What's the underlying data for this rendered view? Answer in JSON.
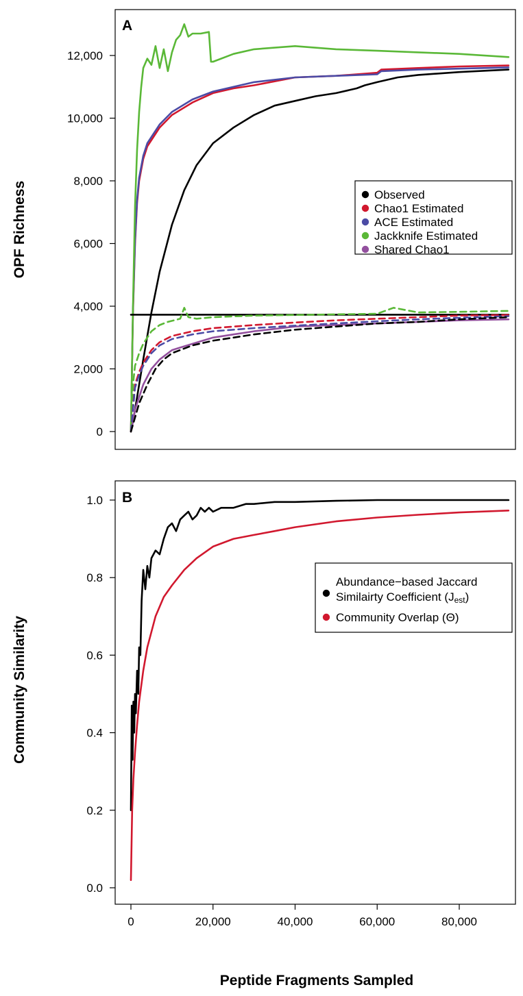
{
  "chart_data": [
    {
      "type": "line",
      "panel_label": "A",
      "ylabel": "OPF Richness",
      "xlabel": "",
      "xlim": [
        0,
        92000
      ],
      "ylim": [
        0,
        12000
      ],
      "yticks": [
        0,
        2000,
        4000,
        6000,
        8000,
        10000,
        12000
      ],
      "ytick_labels": [
        "0",
        "2,000",
        "4,000",
        "6,000",
        "8,000",
        "10,000",
        "12,000"
      ],
      "legend_position": "right",
      "series": [
        {
          "name": "Observed",
          "color": "#000000",
          "dashed": false,
          "x": [
            0,
            1000,
            2000,
            3000,
            5000,
            7000,
            10000,
            13000,
            16000,
            20000,
            25000,
            30000,
            35000,
            40000,
            45000,
            50000,
            55000,
            57000,
            60000,
            65000,
            70000,
            80000,
            92000
          ],
          "y": [
            0,
            700,
            1500,
            2300,
            3800,
            5100,
            6600,
            7700,
            8500,
            9200,
            9700,
            10100,
            10400,
            10550,
            10700,
            10800,
            10950,
            11050,
            11150,
            11300,
            11380,
            11470,
            11550
          ]
        },
        {
          "name": "Chao1 Estimated",
          "color": "#D1182E",
          "dashed": false,
          "x": [
            0,
            500,
            1000,
            1500,
            2000,
            3000,
            4000,
            5000,
            7000,
            10000,
            15000,
            20000,
            25000,
            30000,
            40000,
            50000,
            60000,
            61000,
            70000,
            80000,
            92000
          ],
          "y": [
            0,
            3800,
            6000,
            7300,
            8000,
            8700,
            9100,
            9300,
            9700,
            10100,
            10500,
            10800,
            10950,
            11050,
            11300,
            11350,
            11450,
            11550,
            11600,
            11650,
            11680
          ]
        },
        {
          "name": "ACE Estimated",
          "color": "#4B4BA5",
          "dashed": false,
          "x": [
            0,
            500,
            1000,
            1500,
            2000,
            3000,
            4000,
            5000,
            7000,
            10000,
            15000,
            20000,
            25000,
            30000,
            40000,
            50000,
            60000,
            61000,
            70000,
            80000,
            92000
          ],
          "y": [
            0,
            3900,
            6100,
            7400,
            8100,
            8800,
            9200,
            9400,
            9800,
            10200,
            10600,
            10850,
            11000,
            11150,
            11300,
            11350,
            11400,
            11500,
            11550,
            11580,
            11620
          ]
        },
        {
          "name": "Jackknife Estimated",
          "color": "#5AB837",
          "dashed": false,
          "x": [
            0,
            500,
            1000,
            1500,
            2000,
            2500,
            3000,
            4000,
            5000,
            6000,
            7000,
            8000,
            9000,
            10000,
            11000,
            12000,
            13000,
            14000,
            15000,
            17000,
            19000,
            19500,
            20000,
            25000,
            30000,
            35000,
            40000,
            50000,
            60000,
            70000,
            80000,
            92000
          ],
          "y": [
            0,
            4000,
            7200,
            9000,
            10200,
            11000,
            11600,
            11900,
            11700,
            12300,
            11600,
            12200,
            11500,
            12100,
            12500,
            12650,
            13000,
            12600,
            12700,
            12700,
            12750,
            11800,
            11800,
            12050,
            12200,
            12250,
            12300,
            12200,
            12150,
            12100,
            12050,
            11950
          ]
        },
        {
          "name": "Shared Chao1",
          "color": "#93509E",
          "dashed": false,
          "x": [
            0,
            500,
            1000,
            2000,
            3000,
            5000,
            7000,
            10000,
            15000,
            20000,
            25000,
            30000,
            40000,
            50000,
            60000,
            70000,
            80000,
            92000
          ],
          "y": [
            0,
            300,
            700,
            1100,
            1500,
            2000,
            2300,
            2600,
            2800,
            3000,
            3100,
            3200,
            3350,
            3400,
            3450,
            3500,
            3550,
            3580
          ]
        },
        {
          "name": "",
          "color": "#000000",
          "dashed": false,
          "x": [
            0,
            92000
          ],
          "y": [
            3730,
            3730
          ]
        },
        {
          "name": "",
          "color": "#5AB837",
          "dashed": true,
          "x": [
            0,
            500,
            1000,
            1500,
            2000,
            3000,
            4000,
            5000,
            7000,
            9000,
            12000,
            13000,
            14000,
            16000,
            20000,
            30000,
            40000,
            50000,
            60000,
            64000,
            70000,
            80000,
            92000
          ],
          "y": [
            0,
            1500,
            2100,
            2300,
            2500,
            2800,
            3000,
            3200,
            3400,
            3500,
            3600,
            3950,
            3650,
            3600,
            3650,
            3700,
            3720,
            3740,
            3760,
            3950,
            3800,
            3820,
            3850
          ]
        },
        {
          "name": "",
          "color": "#D1182E",
          "dashed": true,
          "x": [
            0,
            1000,
            2000,
            3000,
            5000,
            7000,
            10000,
            15000,
            20000,
            30000,
            40000,
            50000,
            60000,
            70000,
            80000,
            92000
          ],
          "y": [
            0,
            1500,
            1900,
            2200,
            2600,
            2850,
            3050,
            3200,
            3300,
            3400,
            3480,
            3550,
            3600,
            3650,
            3700,
            3720
          ]
        },
        {
          "name": "",
          "color": "#4B4BA5",
          "dashed": true,
          "x": [
            0,
            1000,
            2000,
            3000,
            5000,
            7000,
            10000,
            15000,
            20000,
            30000,
            40000,
            50000,
            60000,
            70000,
            80000,
            92000
          ],
          "y": [
            0,
            1400,
            1800,
            2100,
            2500,
            2750,
            2950,
            3100,
            3200,
            3300,
            3380,
            3450,
            3520,
            3580,
            3630,
            3680
          ]
        },
        {
          "name": "",
          "color": "#000000",
          "dashed": true,
          "x": [
            0,
            2000,
            4000,
            6000,
            8000,
            10000,
            15000,
            20000,
            25000,
            30000,
            40000,
            50000,
            60000,
            70000,
            80000,
            92000
          ],
          "y": [
            0,
            900,
            1500,
            2000,
            2300,
            2500,
            2750,
            2900,
            3000,
            3100,
            3250,
            3350,
            3450,
            3500,
            3580,
            3650
          ]
        }
      ]
    },
    {
      "type": "line",
      "panel_label": "B",
      "ylabel": "Community Similarity",
      "xlabel": "Peptide Fragments Sampled",
      "xlim": [
        0,
        92000
      ],
      "ylim": [
        0.0,
        1.0
      ],
      "xticks": [
        0,
        20000,
        40000,
        60000,
        80000
      ],
      "xtick_labels": [
        "0",
        "20,000",
        "40,000",
        "60,000",
        "80,000"
      ],
      "yticks": [
        0.0,
        0.2,
        0.4,
        0.6,
        0.8,
        1.0
      ],
      "ytick_labels": [
        "0.0",
        "0.2",
        "0.4",
        "0.6",
        "0.8",
        "1.0"
      ],
      "legend_position": "right",
      "series": [
        {
          "name_lines": [
            "Abundance−based Jaccard",
            "Similairty Coefficient (J"
          ],
          "name_subscript": "est",
          "name_suffix": ")",
          "color": "#000000",
          "x": [
            0,
            200,
            400,
            600,
            800,
            1000,
            1200,
            1500,
            1800,
            2000,
            2300,
            2600,
            3000,
            3500,
            4000,
            4500,
            5000,
            6000,
            7000,
            8000,
            9000,
            10000,
            11000,
            12000,
            13000,
            14000,
            15000,
            16000,
            17000,
            18000,
            19000,
            20000,
            22000,
            25000,
            28000,
            30000,
            35000,
            40000,
            50000,
            60000,
            70000,
            80000,
            92000
          ],
          "y": [
            0.2,
            0.47,
            0.33,
            0.48,
            0.4,
            0.5,
            0.45,
            0.56,
            0.5,
            0.62,
            0.6,
            0.74,
            0.82,
            0.77,
            0.83,
            0.8,
            0.85,
            0.87,
            0.86,
            0.9,
            0.93,
            0.94,
            0.92,
            0.95,
            0.96,
            0.97,
            0.95,
            0.96,
            0.98,
            0.97,
            0.98,
            0.97,
            0.98,
            0.98,
            0.99,
            0.99,
            0.995,
            0.995,
            0.998,
            1.0,
            1.0,
            1.0,
            1.0
          ]
        },
        {
          "name": "Community Overlap (Θ)",
          "color": "#D1182E",
          "x": [
            0,
            300,
            600,
            1000,
            1500,
            2000,
            3000,
            4000,
            5000,
            6000,
            8000,
            10000,
            13000,
            16000,
            20000,
            25000,
            30000,
            35000,
            40000,
            50000,
            60000,
            70000,
            80000,
            92000
          ],
          "y": [
            0.02,
            0.2,
            0.28,
            0.35,
            0.42,
            0.48,
            0.56,
            0.62,
            0.66,
            0.7,
            0.75,
            0.78,
            0.82,
            0.85,
            0.88,
            0.9,
            0.91,
            0.92,
            0.93,
            0.945,
            0.955,
            0.962,
            0.968,
            0.973
          ]
        }
      ]
    }
  ]
}
